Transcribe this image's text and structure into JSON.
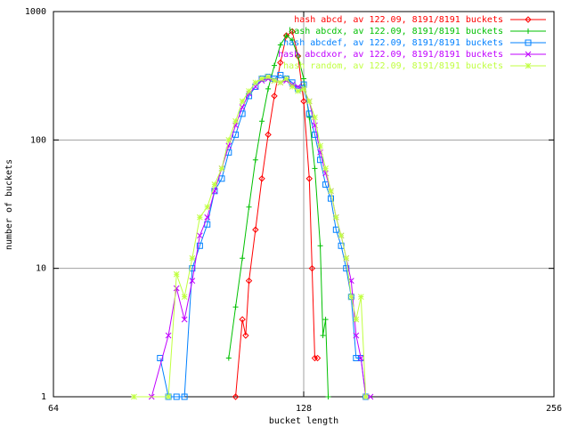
{
  "chart_data": {
    "type": "line",
    "xlabel": "bucket length",
    "ylabel": "number of buckets",
    "xlim": [
      64,
      256
    ],
    "xticks": [
      64,
      128,
      256
    ],
    "xscale": "log",
    "ylim": [
      1,
      1000
    ],
    "yticks": [
      1,
      10,
      100,
      1000
    ],
    "yscale": "log",
    "grid": true,
    "legend": "top-right",
    "series": [
      {
        "name": "hash abcd, av 122.09, 8191/8191 buckets",
        "color": "#ff0000",
        "marker": "diamond",
        "x": [
          106,
          108,
          109,
          110,
          112,
          114,
          116,
          118,
          120,
          122,
          124,
          126,
          128,
          130,
          131,
          132,
          133
        ],
        "values": [
          1,
          4,
          3,
          8,
          20,
          50,
          110,
          220,
          400,
          650,
          700,
          450,
          200,
          50,
          10,
          2,
          2
        ]
      },
      {
        "name": "hash abcdx, av 122.09, 8191/8191 buckets",
        "color": "#00c000",
        "marker": "plus",
        "x": [
          104,
          106,
          108,
          110,
          112,
          114,
          116,
          118,
          120,
          122,
          124,
          126,
          128,
          130,
          132,
          134,
          135,
          136,
          137
        ],
        "values": [
          2,
          5,
          12,
          30,
          70,
          140,
          250,
          380,
          550,
          650,
          600,
          450,
          300,
          150,
          60,
          15,
          3,
          4,
          1
        ]
      },
      {
        "name": "hash abcdef, av 122.09, 8191/8191 buckets",
        "color": "#0080ff",
        "marker": "square",
        "x": [
          86,
          88,
          90,
          92,
          94,
          96,
          98,
          100,
          102,
          104,
          106,
          108,
          110,
          112,
          114,
          116,
          118,
          120,
          122,
          124,
          126,
          128,
          130,
          132,
          134,
          136,
          138,
          140,
          142,
          144,
          146,
          148,
          150,
          152
        ],
        "values": [
          2,
          1,
          1,
          1,
          10,
          15,
          22,
          40,
          50,
          80,
          110,
          160,
          220,
          260,
          300,
          310,
          300,
          320,
          300,
          280,
          250,
          270,
          160,
          110,
          70,
          45,
          35,
          20,
          15,
          10,
          6,
          2,
          2,
          1
        ]
      },
      {
        "name": "hash abcdxor, av 122.09, 8191/8191 buckets",
        "color": "#c000ff",
        "marker": "cross",
        "x": [
          84,
          88,
          90,
          92,
          94,
          96,
          98,
          100,
          102,
          104,
          106,
          108,
          110,
          112,
          114,
          116,
          118,
          120,
          122,
          124,
          126,
          128,
          130,
          132,
          134,
          136,
          138,
          140,
          142,
          144,
          146,
          148,
          150,
          152,
          154
        ],
        "values": [
          1,
          3,
          7,
          4,
          8,
          18,
          25,
          40,
          60,
          90,
          130,
          180,
          230,
          260,
          290,
          300,
          290,
          280,
          290,
          270,
          260,
          250,
          200,
          130,
          80,
          55,
          40,
          25,
          18,
          12,
          8,
          3,
          2,
          1,
          1
        ]
      },
      {
        "name": "hash random, av 122.09, 8191/8191 buckets",
        "color": "#c0ff40",
        "marker": "star",
        "x": [
          80,
          88,
          90,
          92,
          94,
          96,
          98,
          100,
          102,
          104,
          106,
          108,
          110,
          112,
          114,
          116,
          118,
          120,
          122,
          124,
          126,
          128,
          130,
          132,
          134,
          136,
          138,
          140,
          142,
          144,
          146,
          148,
          150,
          152
        ],
        "values": [
          1,
          1,
          9,
          6,
          12,
          25,
          30,
          45,
          60,
          100,
          140,
          200,
          240,
          280,
          300,
          310,
          290,
          280,
          300,
          260,
          240,
          250,
          200,
          150,
          90,
          60,
          40,
          25,
          18,
          12,
          6,
          4,
          6,
          1
        ]
      }
    ]
  }
}
